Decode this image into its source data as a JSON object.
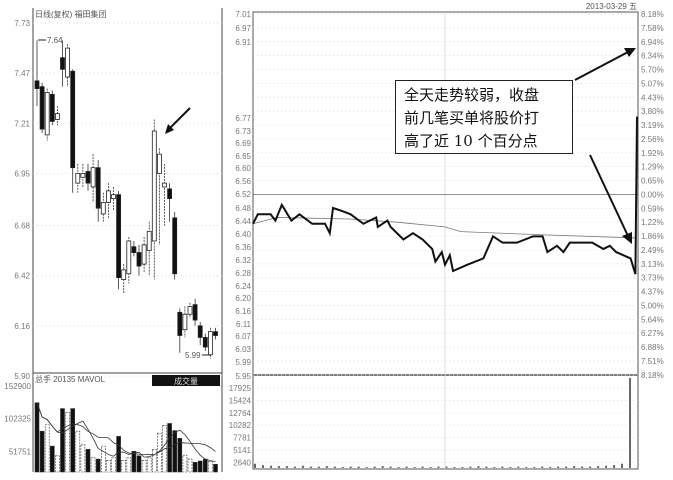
{
  "daily": {
    "title": "日线(复权) 福田集团",
    "y_ticks": [
      "7.73",
      "7.47",
      "7.21",
      "6.95",
      "6.68",
      "6.42",
      "6.16",
      "5.90"
    ],
    "high_label": "7.64",
    "low_label": "5.99",
    "volume_header": "总手 20135 MAVOL",
    "volume_button": "成交量",
    "volume_ticks": [
      "152900",
      "102325",
      "51751"
    ]
  },
  "intraday": {
    "date_label": "2013-03-29 五",
    "price_ticks": [
      "7.01",
      "6.97",
      "6.91",
      "6.77",
      "6.73",
      "6.69",
      "6.65",
      "6.60",
      "6.56",
      "6.52",
      "6.48",
      "6.44",
      "6.40",
      "6.36",
      "6.32",
      "6.28",
      "6.24",
      "6.20",
      "6.16",
      "6.11",
      "6.07",
      "6.03",
      "5.99",
      "5.95"
    ],
    "pct_ticks": [
      "8.18%",
      "7.58%",
      "6.94%",
      "6.34%",
      "5.70%",
      "5.07%",
      "4.43%",
      "3.80%",
      "3.19%",
      "2.56%",
      "1.92%",
      "1.29%",
      "0.65%",
      "0.00%",
      "0.59%",
      "1.22%",
      "1.86%",
      "2.49%",
      "3.13%",
      "3.73%",
      "4.37%",
      "5.00%",
      "5.64%",
      "6.27%",
      "6.88%",
      "7.51%",
      "8.18%"
    ],
    "volume_ticks": [
      "17925",
      "15424",
      "12764",
      "10282",
      "7781",
      "5141",
      "2640"
    ]
  },
  "annotation": "全天走势较弱，收盘前几笔买单将股价打高了近 10 个百分点",
  "annotation_lines": [
    "全天走势较弱，收盘",
    "前几笔买单将股价打",
    "高了近 10 个百分点"
  ],
  "chart_data": [
    {
      "type": "candlestick",
      "title": "日线(复权) 福田集团",
      "ylim": [
        5.9,
        7.73
      ],
      "ohlc": [
        [
          7.43,
          7.64,
          7.3,
          7.39
        ],
        [
          7.4,
          7.42,
          7.16,
          7.18
        ],
        [
          7.15,
          7.39,
          7.12,
          7.37
        ],
        [
          7.36,
          7.38,
          7.2,
          7.22
        ],
        [
          7.23,
          7.3,
          7.2,
          7.26
        ],
        [
          7.55,
          7.64,
          7.4,
          7.49
        ],
        [
          7.45,
          7.62,
          7.4,
          7.6
        ],
        [
          7.48,
          7.49,
          6.85,
          6.98
        ],
        [
          6.9,
          7.0,
          6.85,
          6.95
        ],
        [
          6.93,
          7.0,
          6.88,
          6.95
        ],
        [
          6.96,
          7.0,
          6.86,
          6.9
        ],
        [
          6.88,
          7.05,
          6.8,
          6.98
        ],
        [
          6.98,
          7.02,
          6.7,
          6.77
        ],
        [
          6.74,
          6.85,
          6.7,
          6.8
        ],
        [
          6.8,
          6.9,
          6.72,
          6.86
        ],
        [
          6.82,
          6.88,
          6.76,
          6.84
        ],
        [
          6.84,
          6.86,
          6.35,
          6.41
        ],
        [
          6.4,
          6.48,
          6.33,
          6.45
        ],
        [
          6.43,
          6.62,
          6.38,
          6.6
        ],
        [
          6.57,
          6.6,
          6.52,
          6.54
        ],
        [
          6.54,
          6.58,
          6.42,
          6.47
        ],
        [
          6.48,
          6.62,
          6.44,
          6.58
        ],
        [
          6.55,
          6.7,
          6.42,
          6.65
        ],
        [
          6.6,
          7.23,
          6.4,
          7.17
        ],
        [
          6.95,
          7.08,
          6.58,
          7.05
        ],
        [
          6.88,
          7.0,
          6.68,
          6.9
        ],
        [
          6.87,
          6.9,
          6.7,
          6.82
        ],
        [
          6.72,
          6.75,
          6.4,
          6.43
        ],
        [
          6.23,
          6.25,
          6.02,
          6.11
        ],
        [
          6.14,
          6.26,
          6.1,
          6.22
        ],
        [
          6.22,
          6.28,
          6.2,
          6.26
        ],
        [
          6.27,
          6.3,
          6.16,
          6.19
        ],
        [
          6.16,
          6.18,
          6.06,
          6.1
        ],
        [
          6.1,
          6.12,
          6.03,
          6.05
        ],
        [
          6.01,
          6.15,
          5.99,
          6.13
        ],
        [
          6.13,
          6.15,
          6.09,
          6.11
        ]
      ],
      "volume": [
        127000,
        83000,
        93000,
        60000,
        45000,
        118000,
        112000,
        118000,
        83000,
        62000,
        55000,
        42000,
        40000,
        60000,
        38000,
        42000,
        75000,
        38000,
        42000,
        52000,
        45000,
        38000,
        42000,
        55000,
        80000,
        92000,
        95000,
        84000,
        72000,
        46000,
        40000,
        35000,
        37000,
        40000,
        36000,
        32000
      ],
      "volume_ylim": [
        20000,
        152900
      ],
      "annotations": [
        "7.64",
        "5.99"
      ]
    },
    {
      "type": "line",
      "date": "2013-03-29",
      "prev_close": 6.48,
      "ylim": [
        5.95,
        7.01
      ],
      "price": [
        [
          "09:30",
          6.43
        ],
        [
          "09:33",
          6.46
        ],
        [
          "09:41",
          6.46
        ],
        [
          "09:44",
          6.44
        ],
        [
          "09:48",
          6.49
        ],
        [
          "09:54",
          6.44
        ],
        [
          "09:59",
          6.46
        ],
        [
          "10:07",
          6.43
        ],
        [
          "10:15",
          6.43
        ],
        [
          "10:18",
          6.4
        ],
        [
          "10:20",
          6.48
        ],
        [
          "10:26",
          6.47
        ],
        [
          "10:31",
          6.46
        ],
        [
          "10:39",
          6.43
        ],
        [
          "10:47",
          6.45
        ],
        [
          "10:48",
          6.42
        ],
        [
          "10:54",
          6.44
        ],
        [
          "10:56",
          6.42
        ],
        [
          "11:04",
          6.38
        ],
        [
          "11:10",
          6.4
        ],
        [
          "11:16",
          6.38
        ],
        [
          "11:22",
          6.35
        ],
        [
          "11:24",
          6.31
        ],
        [
          "11:28",
          6.34
        ],
        [
          "11:30",
          6.3
        ],
        [
          "13:03",
          6.33
        ],
        [
          "13:05",
          6.28
        ],
        [
          "13:14",
          6.3
        ],
        [
          "13:24",
          6.32
        ],
        [
          "13:30",
          6.39
        ],
        [
          "13:36",
          6.37
        ],
        [
          "13:45",
          6.37
        ],
        [
          "13:55",
          6.39
        ],
        [
          "14:01",
          6.39
        ],
        [
          "14:04",
          6.34
        ],
        [
          "14:10",
          6.36
        ],
        [
          "14:14",
          6.34
        ],
        [
          "14:18",
          6.37
        ],
        [
          "14:26",
          6.37
        ],
        [
          "14:32",
          6.37
        ],
        [
          "14:39",
          6.35
        ],
        [
          "14:43",
          6.36
        ],
        [
          "14:47",
          6.34
        ],
        [
          "14:56",
          6.32
        ],
        [
          "14:59",
          6.27
        ],
        [
          "15:00",
          6.77
        ]
      ],
      "average": [
        [
          "09:30",
          6.43
        ],
        [
          "09:45",
          6.45
        ],
        [
          "10:30",
          6.445
        ],
        [
          "11:00",
          6.435
        ],
        [
          "11:30",
          6.42
        ],
        [
          "13:10",
          6.405
        ],
        [
          "14:00",
          6.395
        ],
        [
          "14:59",
          6.385
        ]
      ],
      "volume": [
        900,
        600,
        500,
        400,
        400,
        300,
        500,
        300,
        300,
        400,
        300,
        200,
        300,
        300,
        200,
        300,
        400,
        300,
        200,
        300,
        200,
        300,
        200,
        300,
        300,
        200,
        200,
        300,
        400,
        300,
        200,
        300,
        200,
        300,
        200,
        200,
        300,
        200,
        300,
        300,
        400,
        300,
        300,
        400,
        500,
        600,
        900,
        19000
      ],
      "volume_ylim": [
        0,
        19000
      ],
      "colors": {
        "price": "#111111",
        "average": "#777777"
      }
    }
  ]
}
